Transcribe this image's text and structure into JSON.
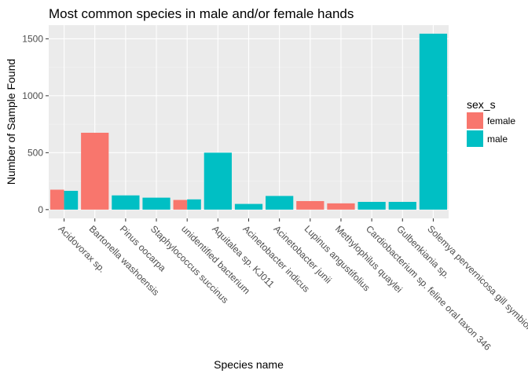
{
  "chart_data": {
    "type": "bar",
    "title": "Most common species in male and/or female hands",
    "xlabel": "Species name",
    "ylabel": "Number of Sample Found",
    "ylim": [
      -77,
      1620
    ],
    "yticks": [
      0,
      500,
      1000,
      1500
    ],
    "grid": true,
    "legend_placement": "right",
    "legend_title": "sex_s",
    "categories": [
      "Acidovorax sp.",
      "Bartonella washoensis",
      "Pinus oocarpa",
      "Staphylococcus succinus",
      "unidentified bacterium",
      "Aquitalea sp. KJ011",
      "Acinetobacter indicus",
      "Acinetobacter junii",
      "Lupinus angustifolius",
      "Methylophilus quaylei",
      "Cardiobacterium sp. feline oral taxon 346",
      "Gulbenkiania sp.",
      "Solemya pervernicosa gill symbiont"
    ],
    "series": [
      {
        "name": "female",
        "color": "#F8766D",
        "values": [
          175,
          675,
          null,
          null,
          85,
          null,
          null,
          null,
          75,
          55,
          null,
          null,
          null
        ]
      },
      {
        "name": "male",
        "color": "#00BFC4",
        "values": [
          165,
          null,
          125,
          105,
          90,
          500,
          50,
          120,
          null,
          null,
          68,
          68,
          1545
        ]
      }
    ]
  }
}
